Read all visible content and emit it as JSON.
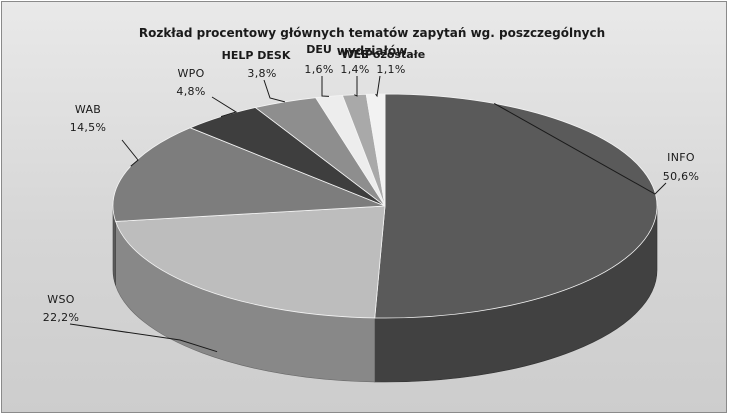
{
  "chart_data": {
    "type": "pie",
    "title": "Rozkład procentowy głównych tematów zapytań wg. poszczególnych wydziałów",
    "title_line1": "Rozkład procentowy głównych tematów zapytań wg. poszczególnych",
    "title_line2": "wydziałów",
    "three_d": true,
    "legend": "none",
    "slices": [
      {
        "label": "INFO",
        "value_label": "50,6%",
        "value": 50.6,
        "color": "#5a5a5a"
      },
      {
        "label": "WSO",
        "value_label": "22,2%",
        "value": 22.2,
        "color": "#bdbdbd"
      },
      {
        "label": "WAB",
        "value_label": "14,5%",
        "value": 14.5,
        "color": "#7d7d7d"
      },
      {
        "label": "WPO",
        "value_label": "4,8%",
        "value": 4.8,
        "color": "#3e3e3e"
      },
      {
        "label": "HELP DESK",
        "value_label": "3,8%",
        "value": 3.8,
        "color": "#8e8e8e"
      },
      {
        "label": "DEU",
        "value_label": "1,6%",
        "value": 1.6,
        "color": "#ededed"
      },
      {
        "label": "WEE",
        "value_label": "1,4%",
        "value": 1.4,
        "color": "#a9a9a9"
      },
      {
        "label": "Pozostałe",
        "value_label": "1,1%",
        "value": 1.1,
        "color": "#f2f2f2"
      }
    ]
  }
}
